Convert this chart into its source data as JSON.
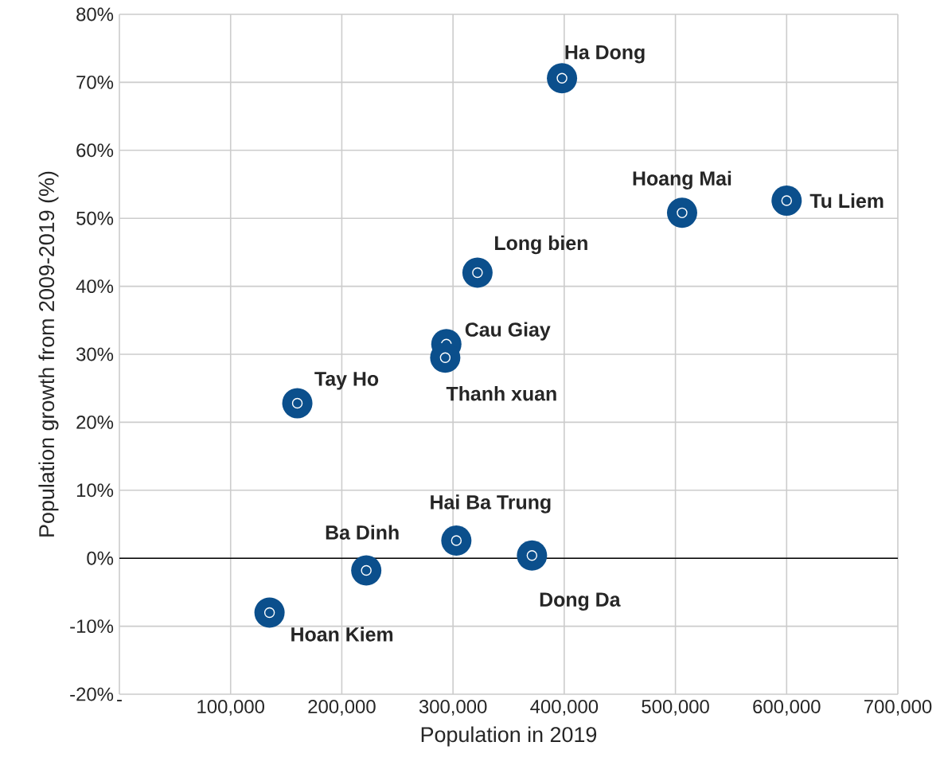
{
  "chart_data": {
    "type": "scatter",
    "xlabel": "Population in 2019",
    "ylabel": "Population growth from 2009-2019 (%)",
    "series": [
      {
        "color": "#0b4f8c",
        "x": [
          398000,
          506000,
          600000,
          322000,
          294000,
          293000,
          160000,
          303000,
          371000,
          222000,
          135000
        ],
        "values": [
          70.6,
          50.8,
          52.6,
          42.0,
          31.5,
          29.5,
          22.8,
          2.6,
          0.4,
          -1.8,
          -8.0
        ]
      }
    ],
    "annotations": [
      {
        "text": "Ha Dong",
        "x": 398000,
        "y": 70.6
      },
      {
        "text": "Hoang Mai",
        "x": 506000,
        "y": 50.8
      },
      {
        "text": "Tu Liem",
        "x": 600000,
        "y": 52.6
      },
      {
        "text": "Long bien",
        "x": 322000,
        "y": 42.0
      },
      {
        "text": "Cau Giay",
        "x": 294000,
        "y": 31.5
      },
      {
        "text": "Thanh xuan",
        "x": 293000,
        "y": 29.5
      },
      {
        "text": "Tay Ho",
        "x": 160000,
        "y": 22.8
      },
      {
        "text": "Hai Ba Trung",
        "x": 303000,
        "y": 2.6
      },
      {
        "text": "Dong Da",
        "x": 371000,
        "y": 0.4
      },
      {
        "text": "Ba Dinh",
        "x": 222000,
        "y": -1.8
      },
      {
        "text": "Hoan Kiem",
        "x": 135000,
        "y": -8.0
      }
    ],
    "xlim": [
      0,
      700000
    ],
    "ylim": [
      -20,
      80
    ],
    "xticks": [
      {
        "value": 0,
        "label": "-"
      },
      {
        "value": 100000,
        "label": "100,000"
      },
      {
        "value": 200000,
        "label": "200,000"
      },
      {
        "value": 300000,
        "label": "300,000"
      },
      {
        "value": 400000,
        "label": "400,000"
      },
      {
        "value": 500000,
        "label": "500,000"
      },
      {
        "value": 600000,
        "label": "600,000"
      },
      {
        "value": 700000,
        "label": "700,000"
      }
    ],
    "yticks": [
      {
        "value": -20,
        "label": "-20%"
      },
      {
        "value": -10,
        "label": "-10%"
      },
      {
        "value": 0,
        "label": "0%"
      },
      {
        "value": 10,
        "label": "10%"
      },
      {
        "value": 20,
        "label": "20%"
      },
      {
        "value": 30,
        "label": "30%"
      },
      {
        "value": 40,
        "label": "40%"
      },
      {
        "value": 50,
        "label": "50%"
      },
      {
        "value": 60,
        "label": "60%"
      },
      {
        "value": 70,
        "label": "70%"
      },
      {
        "value": 80,
        "label": "80%"
      }
    ],
    "ref_lines": [
      {
        "axis": "y",
        "value": 0,
        "color": "#000000"
      }
    ],
    "grid": true,
    "marker": "circle"
  }
}
